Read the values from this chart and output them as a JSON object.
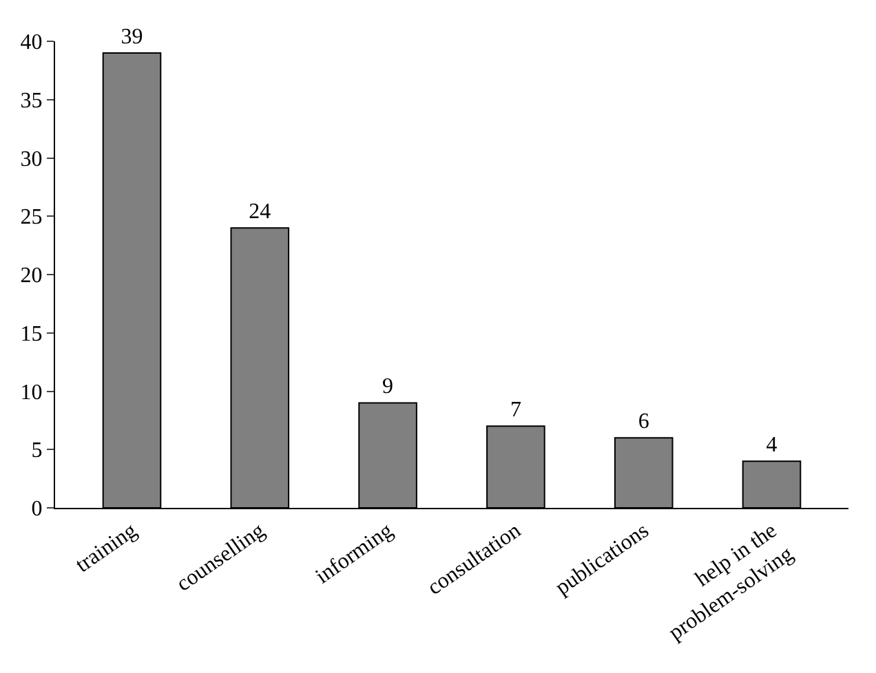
{
  "chart_data": {
    "type": "bar",
    "categories": [
      "training",
      "counselling",
      "informing",
      "consultation",
      "publications",
      "help in the\nproblem-solving"
    ],
    "values": [
      39,
      24,
      9,
      7,
      6,
      4
    ],
    "color": "#808080",
    "ylim": [
      0,
      40
    ],
    "yticks": [
      0,
      5,
      10,
      15,
      20,
      25,
      30,
      35,
      40
    ],
    "data_labels": true
  }
}
